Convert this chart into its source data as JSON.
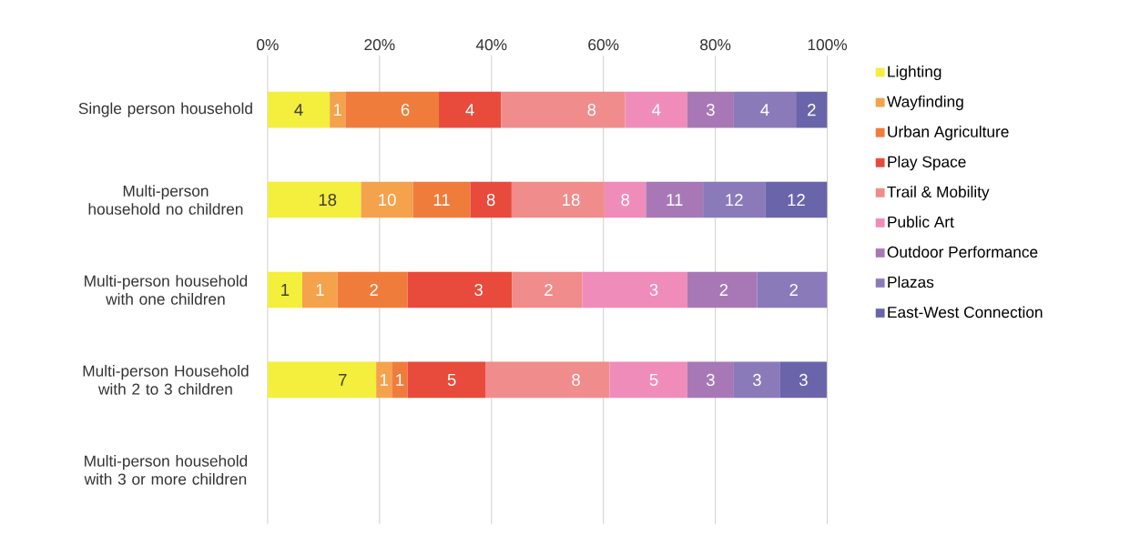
{
  "chart_data": {
    "type": "bar",
    "orientation": "horizontal",
    "stacked": true,
    "categories": [
      "Single person household",
      "Multi-person household no children",
      "Multi-person household with one children",
      "Multi-person Household with 2 to 3 children",
      "Multi-person household with 3 or more children"
    ],
    "xlim": [
      0,
      100
    ],
    "xticks": [
      {
        "value": 0,
        "label": "0%"
      },
      {
        "value": 20,
        "label": "20%"
      },
      {
        "value": 40,
        "label": "40%"
      },
      {
        "value": 60,
        "label": "60%"
      },
      {
        "value": 80,
        "label": "80%"
      },
      {
        "value": 100,
        "label": "100%"
      }
    ],
    "grid": "x",
    "legend": "right",
    "series": [
      {
        "name": "Lighting",
        "color": "#f4ee3c",
        "values": [
          11.1,
          16.7,
          6.2,
          19.4,
          null
        ]
      },
      {
        "name": "Wayfinding",
        "color": "#f5a24c",
        "values": [
          2.8,
          9.3,
          6.3,
          2.8,
          null
        ]
      },
      {
        "name": "Urban Agriculture",
        "color": "#f07c3c",
        "values": [
          16.7,
          10.2,
          12.5,
          2.8,
          null
        ]
      },
      {
        "name": "Play Space",
        "color": "#e84b3c",
        "values": [
          11.1,
          7.4,
          18.7,
          13.9,
          null
        ]
      },
      {
        "name": "Trail & Mobility",
        "color": "#f08c8c",
        "values": [
          22.2,
          16.6,
          12.5,
          22.2,
          null
        ]
      },
      {
        "name": "Public Art",
        "color": "#f08cba",
        "values": [
          11.1,
          7.4,
          18.8,
          13.9,
          null
        ]
      },
      {
        "name": "Outdoor Performance",
        "color": "#a878b6",
        "values": [
          8.3,
          10.2,
          12.5,
          8.3,
          null
        ]
      },
      {
        "name": "Plazas",
        "color": "#8a7aba",
        "values": [
          11.1,
          11.1,
          12.5,
          8.3,
          null
        ]
      },
      {
        "name": "East-West Connection",
        "color": "#6a64aa",
        "values": [
          5.6,
          11.1,
          null,
          8.3,
          null
        ]
      }
    ],
    "annotations": [
      {
        "text": "4",
        "x": 11.1,
        "y": "Single person household"
      },
      {
        "text": "1",
        "x": 13.9,
        "y": "Single person household"
      },
      {
        "text": "6",
        "x": 30.6,
        "y": "Single person household"
      },
      {
        "text": "4",
        "x": 41.7,
        "y": "Single person household"
      },
      {
        "text": "8",
        "x": 63.9,
        "y": "Single person household"
      },
      {
        "text": "4",
        "x": 75.0,
        "y": "Single person household"
      },
      {
        "text": "3",
        "x": 83.3,
        "y": "Single person household"
      },
      {
        "text": "4",
        "x": 94.4,
        "y": "Single person household"
      },
      {
        "text": "2",
        "x": 100.0,
        "y": "Single person household"
      },
      {
        "text": "18",
        "x": 16.7,
        "y": "Multi-person household no children"
      },
      {
        "text": "10",
        "x": 26.0,
        "y": "Multi-person household no children"
      },
      {
        "text": "11",
        "x": 36.2,
        "y": "Multi-person household no children"
      },
      {
        "text": "8",
        "x": 43.6,
        "y": "Multi-person household no children"
      },
      {
        "text": "18",
        "x": 60.2,
        "y": "Multi-person household no children"
      },
      {
        "text": "8",
        "x": 67.6,
        "y": "Multi-person household no children"
      },
      {
        "text": "11",
        "x": 77.8,
        "y": "Multi-person household no children"
      },
      {
        "text": "12",
        "x": 88.9,
        "y": "Multi-person household no children"
      },
      {
        "text": "12",
        "x": 100.0,
        "y": "Multi-person household no children"
      },
      {
        "text": "1",
        "x": 6.2,
        "y": "Multi-person household with one children"
      },
      {
        "text": "1",
        "x": 12.5,
        "y": "Multi-person household with one children"
      },
      {
        "text": "2",
        "x": 25.0,
        "y": "Multi-person household with one children"
      },
      {
        "text": "3",
        "x": 43.7,
        "y": "Multi-person household with one children"
      },
      {
        "text": "2",
        "x": 56.2,
        "y": "Multi-person household with one children"
      },
      {
        "text": "3",
        "x": 75.0,
        "y": "Multi-person household with one children"
      },
      {
        "text": "2",
        "x": 87.5,
        "y": "Multi-person household with one children"
      },
      {
        "text": "2",
        "x": 100.0,
        "y": "Multi-person household with one children"
      },
      {
        "text": "7",
        "x": 19.4,
        "y": "Multi-person Household with 2 to 3 children"
      },
      {
        "text": "1",
        "x": 22.2,
        "y": "Multi-person Household with 2 to 3 children"
      },
      {
        "text": "1",
        "x": 25.0,
        "y": "Multi-person Household with 2 to 3 children"
      },
      {
        "text": "5",
        "x": 38.9,
        "y": "Multi-person Household with 2 to 3 children"
      },
      {
        "text": "8",
        "x": 61.1,
        "y": "Multi-person Household with 2 to 3 children"
      },
      {
        "text": "5",
        "x": 75.0,
        "y": "Multi-person Household with 2 to 3 children"
      },
      {
        "text": "3",
        "x": 83.3,
        "y": "Multi-person Household with 2 to 3 children"
      },
      {
        "text": "3",
        "x": 91.6,
        "y": "Multi-person Household with 2 to 3 children"
      },
      {
        "text": "3",
        "x": 99.9,
        "y": "Multi-person Household with 2 to 3 children"
      }
    ]
  }
}
